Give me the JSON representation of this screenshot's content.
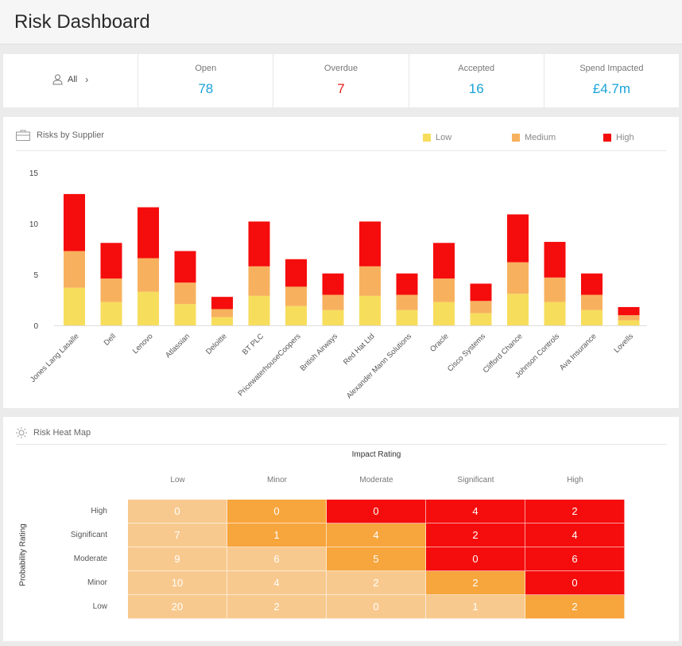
{
  "header": {
    "title": "Risk Dashboard"
  },
  "filter": {
    "label": "All",
    "chevron": "›",
    "icon": "user-icon"
  },
  "stats": [
    {
      "label": "Open",
      "value": "78",
      "color": "#1aa3d9"
    },
    {
      "label": "Overdue",
      "value": "7",
      "color": "#e8211b"
    },
    {
      "label": "Accepted",
      "value": "16",
      "color": "#1aa3d9"
    },
    {
      "label": "Spend Impacted",
      "value": "£4.7m",
      "color": "#1aa3d9"
    }
  ],
  "supplier_card": {
    "title": "Risks by Supplier",
    "icon": "briefcase-icon",
    "legend": [
      {
        "name": "Low",
        "color": "#f7dd5c"
      },
      {
        "name": "Medium",
        "color": "#f7b15e"
      },
      {
        "name": "High",
        "color": "#f50c0c"
      }
    ]
  },
  "chart_data": {
    "type": "bar",
    "stacked": true,
    "categories": [
      "Jones Lang Lasalle",
      "Dell",
      "Lenovo",
      "Atlassian",
      "Deloitte",
      "BT PLC",
      "PricewaterhouseCoopers",
      "British Airways",
      "Red Hat Ltd",
      "Alexander Mann Solutions",
      "Oracle",
      "Cisco Systems",
      "Clifford Chance",
      "Johnson Controls",
      "Ava Insurance",
      "Lovells"
    ],
    "series": [
      {
        "name": "Low",
        "color": "#f7dd5c",
        "values": [
          3.7,
          2.3,
          3.3,
          2.1,
          0.8,
          2.9,
          1.9,
          1.5,
          2.9,
          1.5,
          2.3,
          1.2,
          3.1,
          2.3,
          1.5,
          0.5
        ]
      },
      {
        "name": "Medium",
        "color": "#f7b15e",
        "values": [
          3.6,
          2.3,
          3.3,
          2.1,
          0.8,
          2.9,
          1.9,
          1.5,
          2.9,
          1.5,
          2.3,
          1.2,
          3.1,
          2.4,
          1.5,
          0.5
        ]
      },
      {
        "name": "High",
        "color": "#f50c0c",
        "values": [
          5.6,
          3.5,
          5.0,
          3.1,
          1.2,
          4.4,
          2.7,
          2.1,
          4.4,
          2.1,
          3.5,
          1.7,
          4.7,
          3.5,
          2.1,
          0.8
        ]
      }
    ],
    "yticks": [
      "0",
      "5",
      "10",
      "15"
    ],
    "ylim": [
      0,
      15
    ],
    "grid": false,
    "legend": "top-right"
  },
  "heatmap": {
    "title": "Risk Heat Map",
    "icon": "sun-icon",
    "x_title": "Impact Rating",
    "y_title": "Probability Rating",
    "columns": [
      "Low",
      "Minor",
      "Moderate",
      "Significant",
      "High"
    ],
    "rows": [
      "High",
      "Significant",
      "Moderate",
      "Minor",
      "Low"
    ],
    "values": [
      [
        "0",
        "0",
        "0",
        "4",
        "2"
      ],
      [
        "7",
        "1",
        "4",
        "2",
        "4"
      ],
      [
        "9",
        "6",
        "5",
        "0",
        "6"
      ],
      [
        "10",
        "4",
        "2",
        "2",
        "0"
      ],
      [
        "20",
        "2",
        "0",
        "1",
        "2"
      ]
    ],
    "levels": [
      [
        1,
        2,
        3,
        3,
        3
      ],
      [
        1,
        2,
        2,
        3,
        3
      ],
      [
        1,
        1,
        2,
        3,
        3
      ],
      [
        1,
        1,
        1,
        2,
        3
      ],
      [
        1,
        1,
        1,
        1,
        2
      ]
    ],
    "level_colors": {
      "1": "#f8c98e",
      "2": "#f7a53d",
      "3": "#f50c0c"
    }
  }
}
